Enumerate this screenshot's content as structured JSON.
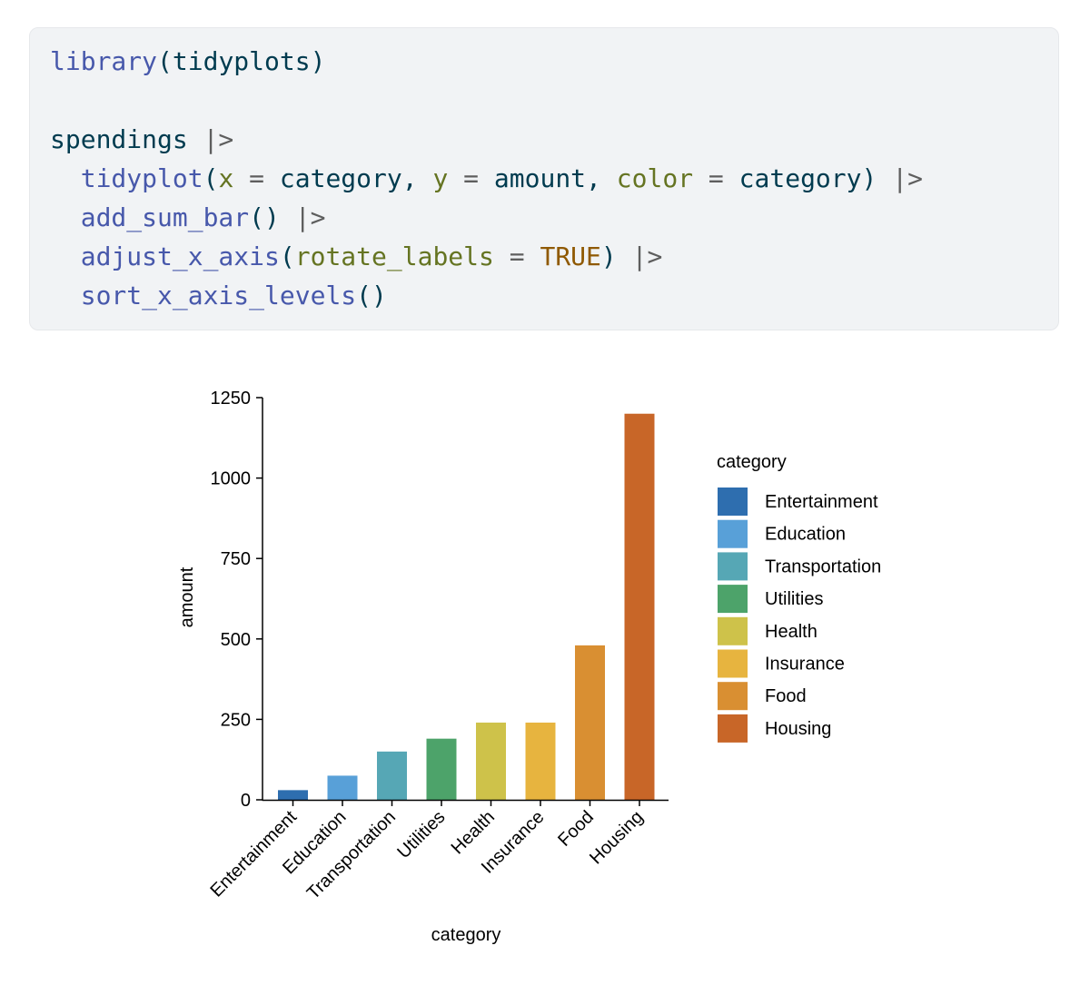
{
  "code": {
    "lines": [
      [
        {
          "t": "library",
          "c": "fn"
        },
        {
          "t": "(",
          "c": "txt"
        },
        {
          "t": "tidyplots",
          "c": "txt"
        },
        {
          "t": ")",
          "c": "txt"
        }
      ],
      [],
      [
        {
          "t": "spendings ",
          "c": "txt"
        },
        {
          "t": "|>",
          "c": "op"
        }
      ],
      [
        {
          "t": "  ",
          "c": "txt"
        },
        {
          "t": "tidyplot",
          "c": "fn"
        },
        {
          "t": "(",
          "c": "txt"
        },
        {
          "t": "x",
          "c": "arg"
        },
        {
          "t": " = ",
          "c": "op"
        },
        {
          "t": "category",
          "c": "txt"
        },
        {
          "t": ", ",
          "c": "txt"
        },
        {
          "t": "y",
          "c": "arg"
        },
        {
          "t": " = ",
          "c": "op"
        },
        {
          "t": "amount",
          "c": "txt"
        },
        {
          "t": ", ",
          "c": "txt"
        },
        {
          "t": "color",
          "c": "arg"
        },
        {
          "t": " = ",
          "c": "op"
        },
        {
          "t": "category",
          "c": "txt"
        },
        {
          "t": ") ",
          "c": "txt"
        },
        {
          "t": "|>",
          "c": "op"
        }
      ],
      [
        {
          "t": "  ",
          "c": "txt"
        },
        {
          "t": "add_sum_bar",
          "c": "fn"
        },
        {
          "t": "() ",
          "c": "txt"
        },
        {
          "t": "|>",
          "c": "op"
        }
      ],
      [
        {
          "t": "  ",
          "c": "txt"
        },
        {
          "t": "adjust_x_axis",
          "c": "fn"
        },
        {
          "t": "(",
          "c": "txt"
        },
        {
          "t": "rotate_labels",
          "c": "arg"
        },
        {
          "t": " = ",
          "c": "op"
        },
        {
          "t": "TRUE",
          "c": "const"
        },
        {
          "t": ") ",
          "c": "txt"
        },
        {
          "t": "|>",
          "c": "op"
        }
      ],
      [
        {
          "t": "  ",
          "c": "txt"
        },
        {
          "t": "sort_x_axis_levels",
          "c": "fn"
        },
        {
          "t": "()",
          "c": "txt"
        }
      ]
    ]
  },
  "chart_data": {
    "type": "bar",
    "categories": [
      "Entertainment",
      "Education",
      "Transportation",
      "Utilities",
      "Health",
      "Insurance",
      "Food",
      "Housing"
    ],
    "values": [
      30,
      75,
      150,
      190,
      240,
      240,
      480,
      1200
    ],
    "colors": [
      "#2e6eaf",
      "#58a0d8",
      "#56a7b5",
      "#4da36a",
      "#cec24a",
      "#e7b43f",
      "#d98f32",
      "#c86628"
    ],
    "xlabel": "category",
    "ylabel": "amount",
    "yticks": [
      0,
      250,
      500,
      750,
      1000,
      1250
    ],
    "ylim": [
      0,
      1250
    ],
    "grid": false,
    "legend": {
      "title": "category",
      "position": "right",
      "entries": [
        "Entertainment",
        "Education",
        "Transportation",
        "Utilities",
        "Health",
        "Insurance",
        "Food",
        "Housing"
      ]
    }
  }
}
